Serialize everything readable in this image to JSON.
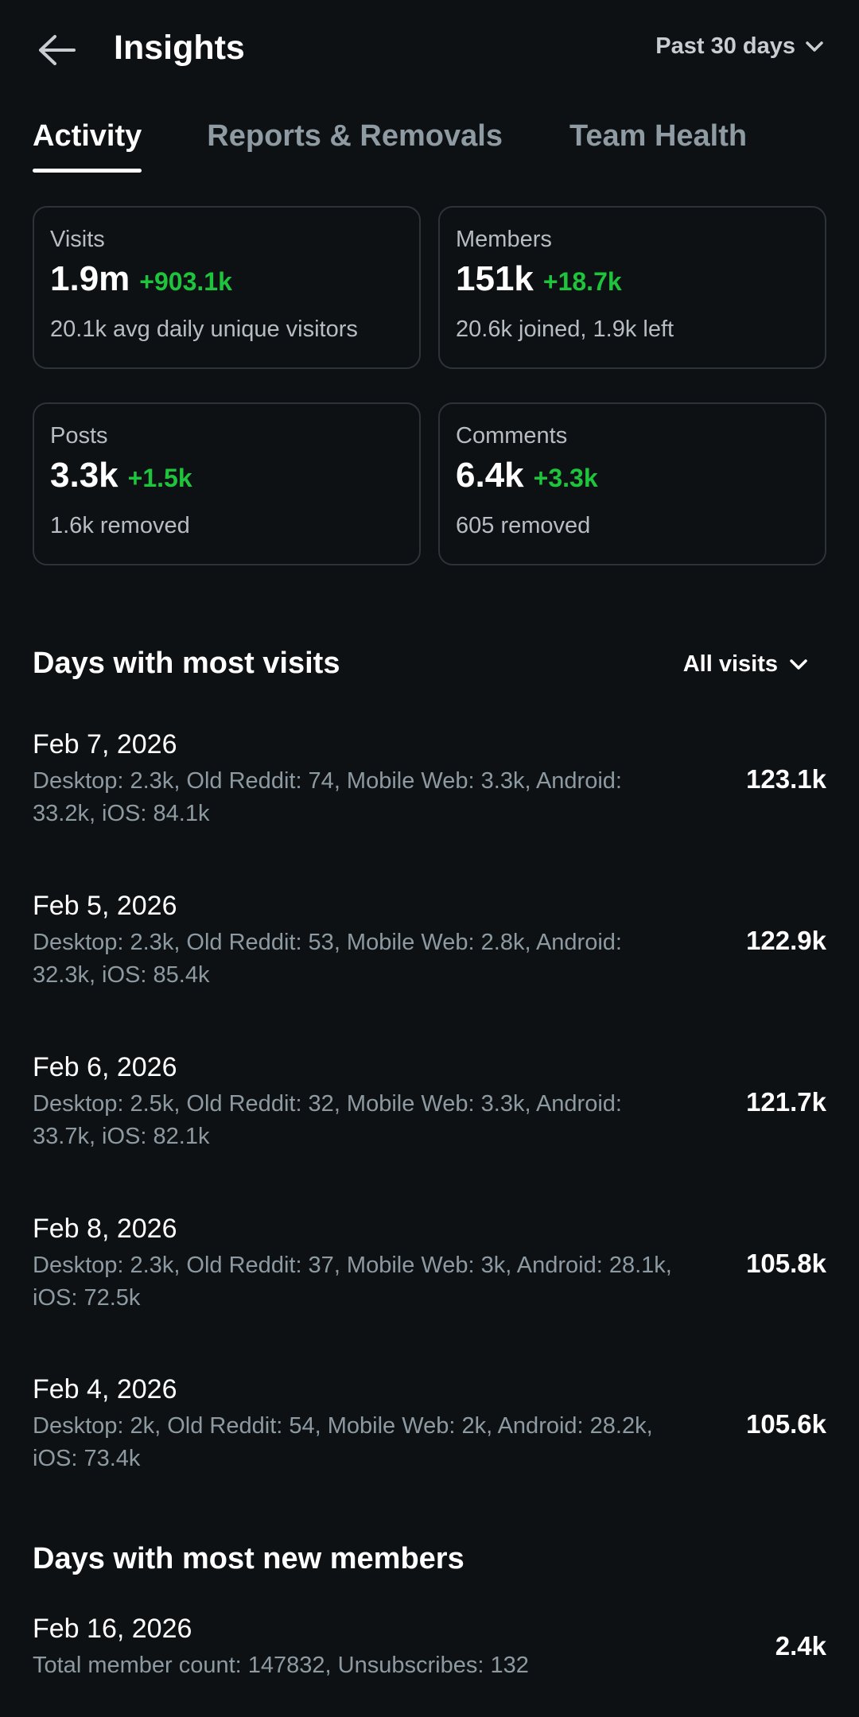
{
  "header": {
    "title": "Insights",
    "range": "Past 30 days"
  },
  "tabs": [
    {
      "label": "Activity",
      "active": true
    },
    {
      "label": "Reports & Removals",
      "active": false
    },
    {
      "label": "Team Health",
      "active": false
    }
  ],
  "stats": [
    {
      "label": "Visits",
      "value": "1.9m",
      "delta": "+903.1k",
      "sub": "20.1k avg daily unique visitors"
    },
    {
      "label": "Members",
      "value": "151k",
      "delta": "+18.7k",
      "sub": "20.6k joined, 1.9k left"
    },
    {
      "label": "Posts",
      "value": "3.3k",
      "delta": "+1.5k",
      "sub": "1.6k removed"
    },
    {
      "label": "Comments",
      "value": "6.4k",
      "delta": "+3.3k",
      "sub": "605 removed"
    }
  ],
  "most_visits": {
    "title": "Days with most visits",
    "filter": "All visits",
    "rows": [
      {
        "date": "Feb 7, 2026",
        "detail": "Desktop: 2.3k, Old Reddit: 74, Mobile Web: 3.3k, Android: 33.2k, iOS: 84.1k",
        "total": "123.1k"
      },
      {
        "date": "Feb 5, 2026",
        "detail": "Desktop: 2.3k, Old Reddit: 53, Mobile Web: 2.8k, Android: 32.3k, iOS: 85.4k",
        "total": "122.9k"
      },
      {
        "date": "Feb 6, 2026",
        "detail": "Desktop: 2.5k, Old Reddit: 32, Mobile Web: 3.3k, Android: 33.7k, iOS: 82.1k",
        "total": "121.7k"
      },
      {
        "date": "Feb 8, 2026",
        "detail": "Desktop: 2.3k, Old Reddit: 37, Mobile Web: 3k, Android: 28.1k, iOS: 72.5k",
        "total": "105.8k"
      },
      {
        "date": "Feb 4, 2026",
        "detail": "Desktop: 2k, Old Reddit: 54, Mobile Web: 2k, Android: 28.2k, iOS: 73.4k",
        "total": "105.6k"
      }
    ]
  },
  "most_members": {
    "title": "Days with most new members",
    "rows": [
      {
        "date": "Feb 16, 2026",
        "detail": "Total member count: 147832, Unsubscribes: 132",
        "total": "2.4k"
      }
    ]
  },
  "colors": {
    "background": "#0d1114",
    "positive": "#1fc43d",
    "muted": "#8e9aa2"
  },
  "icons": {
    "back": "arrow-left-icon",
    "dropdown": "chevron-down-icon"
  }
}
